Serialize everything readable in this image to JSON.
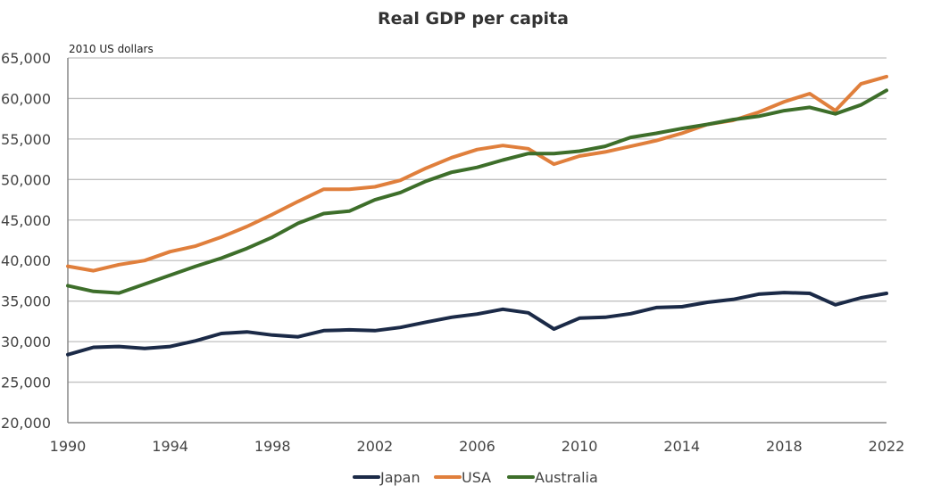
{
  "chart_data": {
    "type": "line",
    "title": "Real GDP per capita",
    "unit_label": "2010 US dollars",
    "xlabel": "",
    "ylabel": "2010 US dollars",
    "xlim": [
      1990,
      2022
    ],
    "ylim": [
      20000,
      65000
    ],
    "grid": true,
    "legend_position": "bottom",
    "x_ticks": [
      1990,
      1994,
      1998,
      2002,
      2006,
      2010,
      2014,
      2018,
      2022
    ],
    "x_tick_labels": [
      "1990",
      "1994",
      "1998",
      "2002",
      "2006",
      "2010",
      "2014",
      "2018",
      "2022"
    ],
    "y_ticks": [
      20000,
      25000,
      30000,
      35000,
      40000,
      45000,
      50000,
      55000,
      60000,
      65000
    ],
    "y_tick_labels": [
      "20,000",
      "25,000",
      "30,000",
      "35,000",
      "40,000",
      "45,000",
      "50,000",
      "55,000",
      "60,000",
      "65,000"
    ],
    "x": [
      1990,
      1991,
      1992,
      1993,
      1994,
      1995,
      1996,
      1997,
      1998,
      1999,
      2000,
      2001,
      2002,
      2003,
      2004,
      2005,
      2006,
      2007,
      2008,
      2009,
      2010,
      2011,
      2012,
      2013,
      2014,
      2015,
      2016,
      2017,
      2018,
      2019,
      2020,
      2021,
      2022
    ],
    "series": [
      {
        "name": "Japan",
        "color": "#1b2a47",
        "values": [
          28400,
          29300,
          29400,
          29150,
          29400,
          30100,
          31000,
          31200,
          30800,
          30600,
          31350,
          31450,
          31350,
          31750,
          32400,
          33000,
          33400,
          34000,
          33550,
          31550,
          32900,
          33000,
          33450,
          34200,
          34300,
          34850,
          35200,
          35850,
          36050,
          35950,
          34550,
          35400,
          35950
        ]
      },
      {
        "name": "USA",
        "color": "#e07f3c",
        "values": [
          39300,
          38750,
          39500,
          40000,
          41100,
          41800,
          42900,
          44200,
          45700,
          47300,
          48800,
          48800,
          49100,
          49900,
          51400,
          52700,
          53700,
          54200,
          53800,
          51900,
          52900,
          53400,
          54100,
          54800,
          55700,
          56800,
          57300,
          58300,
          59600,
          60600,
          58500,
          61800,
          62700
        ]
      },
      {
        "name": "Australia",
        "color": "#3d6e2a",
        "values": [
          36900,
          36200,
          36000,
          37100,
          38200,
          39300,
          40300,
          41500,
          42900,
          44600,
          45800,
          46100,
          47500,
          48400,
          49800,
          50900,
          51500,
          52400,
          53200,
          53200,
          53500,
          54100,
          55200,
          55700,
          56300,
          56800,
          57400,
          57800,
          58500,
          58900,
          58100,
          59200,
          61000
        ]
      }
    ]
  }
}
